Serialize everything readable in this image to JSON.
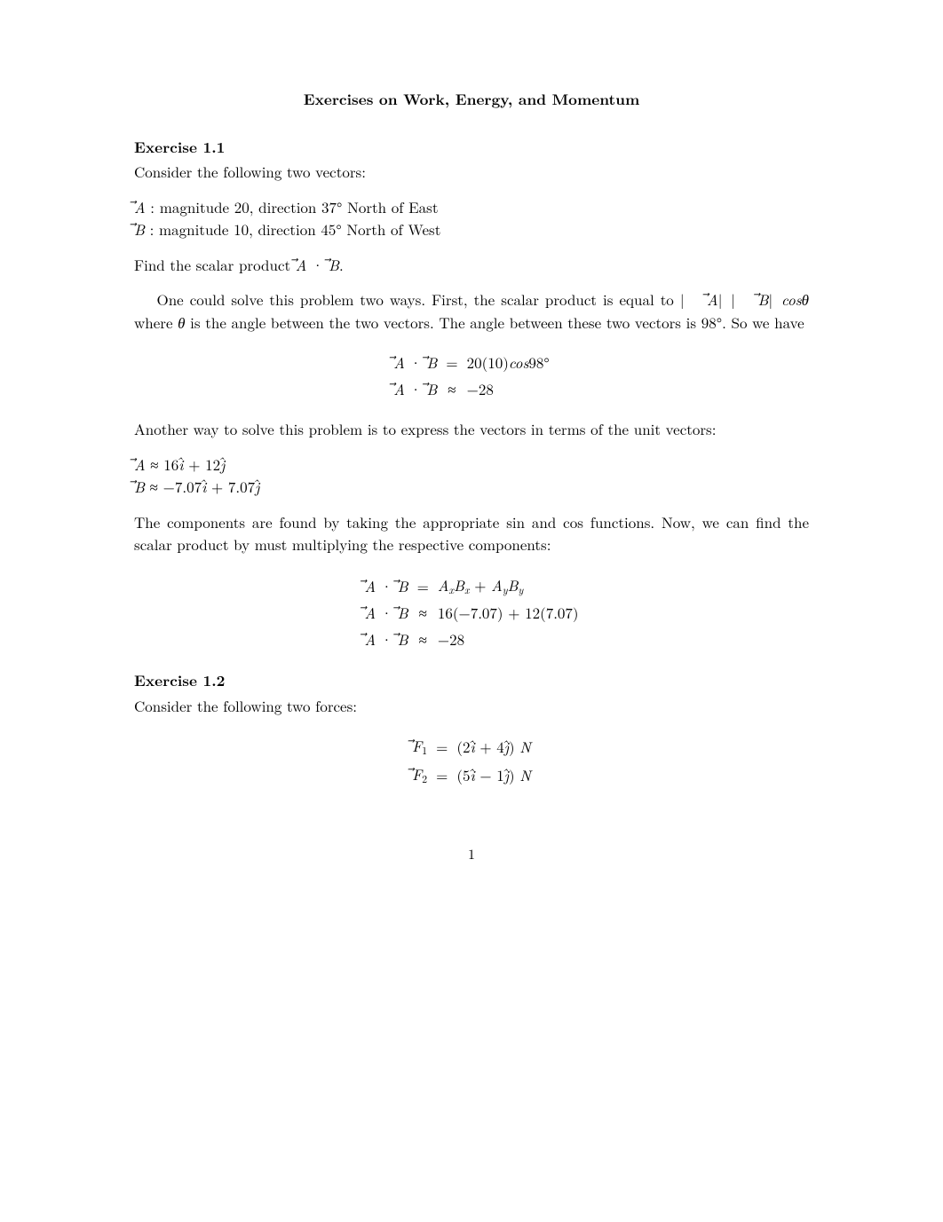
{
  "title": "Exercises on Work, Energy, and Momentum",
  "ex1": {
    "heading": "Exercise 1.1",
    "intro": "Consider the following two vectors:",
    "vecA": "A⃗ : magnitude 20, direction 37° North of East",
    "vecB": "B⃗ : magnitude 10, direction 45° North of West",
    "find": "Find the scalar product A⃗ · B⃗.",
    "explain1a": "One could solve this problem two ways. First, the scalar product is equal to ",
    "explain1mid": " where θ is the angle between the two vectors. The angle between these two vectors is 98°. So we have",
    "eq1": {
      "r1_lhs": "A⃗ · B⃗",
      "r1_op": "=",
      "r1_rhs": "20(10)cos98°",
      "r2_lhs": "A⃗ · B⃗",
      "r2_op": "≈",
      "r2_rhs": "−28"
    },
    "another": "Another way to solve this problem is to express the vectors in terms of the unit vectors:",
    "compA": "A⃗ ≈ 16î + 12ĵ",
    "compB": "B⃗ ≈ −7.07î + 7.07ĵ",
    "explain2": "The components are found by taking the appropriate sin and cos functions. Now, we can find the scalar product by must multiplying the respective components:",
    "eq2": {
      "r1_lhs": "A⃗ · B⃗",
      "r1_op": "=",
      "r2_lhs": "A⃗ · B⃗",
      "r2_op": "≈",
      "r2_rhs": "16(−7.07) + 12(7.07)",
      "r3_lhs": "A⃗ · B⃗",
      "r3_op": "≈",
      "r3_rhs": "−28"
    }
  },
  "ex2": {
    "heading": "Exercise 1.2",
    "intro": "Consider the following two forces:",
    "eq": {
      "r1_op": "=",
      "r1_rhs": "(2î + 4ĵ) N",
      "r2_op": "=",
      "r2_rhs": "(5î − 1ĵ) N"
    }
  },
  "page": "1"
}
